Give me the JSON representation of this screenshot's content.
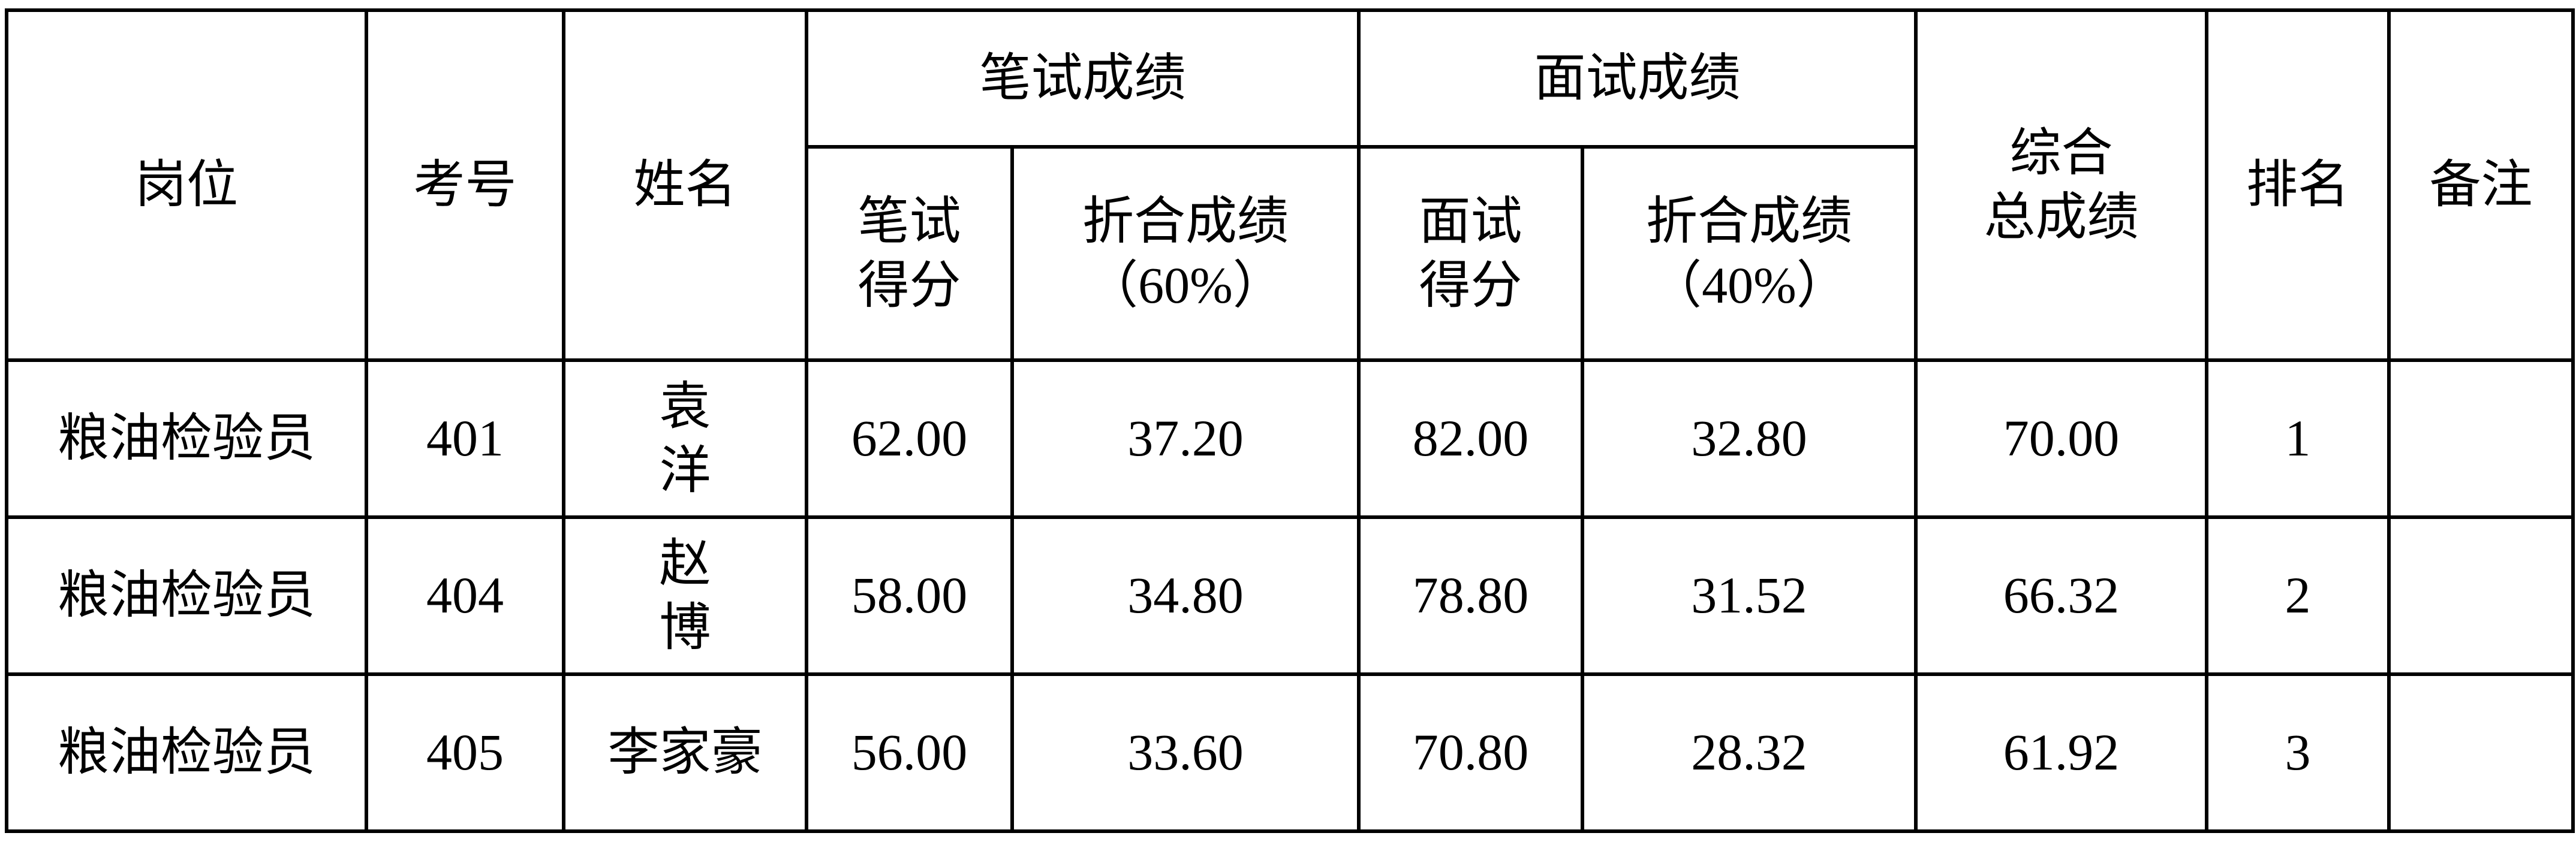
{
  "headers": {
    "post": "岗位",
    "exam_no": "考号",
    "name": "姓名",
    "written_group": "笔试成绩",
    "written_score": [
      "笔试",
      "得分"
    ],
    "written_weighted": [
      "折合成绩",
      "（60%）"
    ],
    "interview_group": "面试成绩",
    "interview_score": [
      "面试",
      "得分"
    ],
    "interview_weighted": [
      "折合成绩",
      "（40%）"
    ],
    "total": [
      "综合",
      "总成绩"
    ],
    "rank": "排名",
    "remark": "备注"
  },
  "rows": [
    {
      "post": "粮油检验员",
      "exam_no": "401",
      "name": "袁洋",
      "written_score": "62.00",
      "written_weighted": "37.20",
      "interview_score": "82.00",
      "interview_weighted": "32.80",
      "total": "70.00",
      "rank": "1",
      "remark": ""
    },
    {
      "post": "粮油检验员",
      "exam_no": "404",
      "name": "赵博",
      "written_score": "58.00",
      "written_weighted": "34.80",
      "interview_score": "78.80",
      "interview_weighted": "31.52",
      "total": "66.32",
      "rank": "2",
      "remark": ""
    },
    {
      "post": "粮油检验员",
      "exam_no": "405",
      "name": "李家豪",
      "written_score": "56.00",
      "written_weighted": "33.60",
      "interview_score": "70.80",
      "interview_weighted": "28.32",
      "total": "61.92",
      "rank": "3",
      "remark": ""
    }
  ]
}
